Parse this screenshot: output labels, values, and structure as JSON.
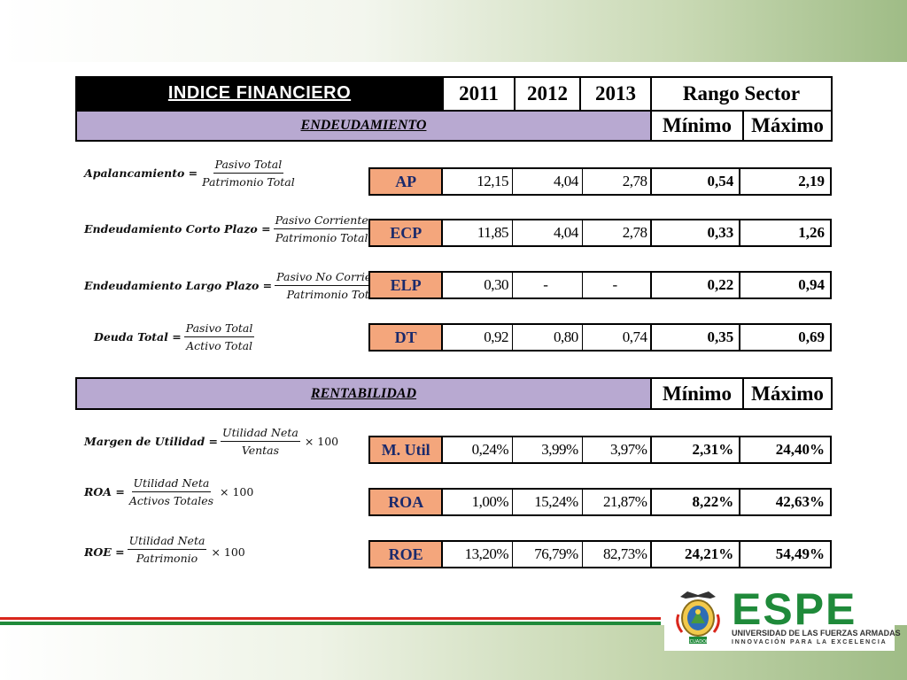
{
  "header": {
    "title": "INDICE FINANCIERO",
    "years": [
      "2011",
      "2012",
      "2013"
    ],
    "rango": "Rango Sector"
  },
  "sections": {
    "endeudamiento": {
      "label": "ENDEUDAMIENTO",
      "min": "Mínimo",
      "max": "Máximo"
    },
    "rentabilidad": {
      "label": "RENTABILIDAD",
      "min": "Mínimo",
      "max": "Máximo"
    }
  },
  "rows": [
    {
      "code": "AP",
      "v2011": "12,15",
      "v2012": "4,04",
      "v2013": "2,78",
      "min": "0,54",
      "max": "2,19",
      "formula": {
        "lhs": "Apalancamiento =",
        "num": "Pasivo Total",
        "den": "Patrimonio Total",
        "times": ""
      }
    },
    {
      "code": "ECP",
      "v2011": "11,85",
      "v2012": "4,04",
      "v2013": "2,78",
      "min": "0,33",
      "max": "1,26",
      "formula": {
        "lhs": "Endeudamiento Corto Plazo =",
        "num": "Pasivo Corriente",
        "den": "Patrimonio Total",
        "times": ""
      }
    },
    {
      "code": "ELP",
      "v2011": "0,30",
      "v2012": "-",
      "v2013": "-",
      "min": "0,22",
      "max": "0,94",
      "formula": {
        "lhs": "Endeudamiento Largo Plazo =",
        "num": "Pasivo No Corriente",
        "den": "Patrimonio Total",
        "times": ""
      }
    },
    {
      "code": "DT",
      "v2011": "0,92",
      "v2012": "0,80",
      "v2013": "0,74",
      "min": "0,35",
      "max": "0,69",
      "formula": {
        "lhs": "Deuda Total =",
        "num": "Pasivo Total",
        "den": "Activo Total",
        "times": ""
      }
    },
    {
      "code": "M. Util",
      "v2011": "0,24%",
      "v2012": "3,99%",
      "v2013": "3,97%",
      "min": "2,31%",
      "max": "24,40%",
      "formula": {
        "lhs": "Margen de  Utilidad =",
        "num": "Utilidad Neta",
        "den": "Ventas",
        "times": "× 100"
      }
    },
    {
      "code": "ROA",
      "v2011": "1,00%",
      "v2012": "15,24%",
      "v2013": "21,87%",
      "min": "8,22%",
      "max": "42,63%",
      "formula": {
        "lhs": "ROA =",
        "num": "Utilidad Neta",
        "den": "Activos Totales",
        "times": "× 100"
      }
    },
    {
      "code": "ROE",
      "v2011": "13,20%",
      "v2012": "76,79%",
      "v2013": "82,73%",
      "min": "24,21%",
      "max": "54,49%",
      "formula": {
        "lhs": "ROE =",
        "num": "Utilidad Neta",
        "den": "Patrimonio",
        "times": "× 100"
      }
    }
  ],
  "logo": {
    "name": "ESPE",
    "subtitle": "UNIVERSIDAD DE LAS FUERZAS ARMADAS",
    "tagline": "INNOVACIÓN PARA LA EXCELENCIA",
    "crest_label": "ECUADOR"
  },
  "colors": {
    "header_bg": "#000000",
    "section_bg": "#b8a9d1",
    "code_bg": "#f4a67c",
    "code_text": "#1a2a6c",
    "brand_green": "#1f8a3a",
    "stripe_red": "#d9261c"
  }
}
